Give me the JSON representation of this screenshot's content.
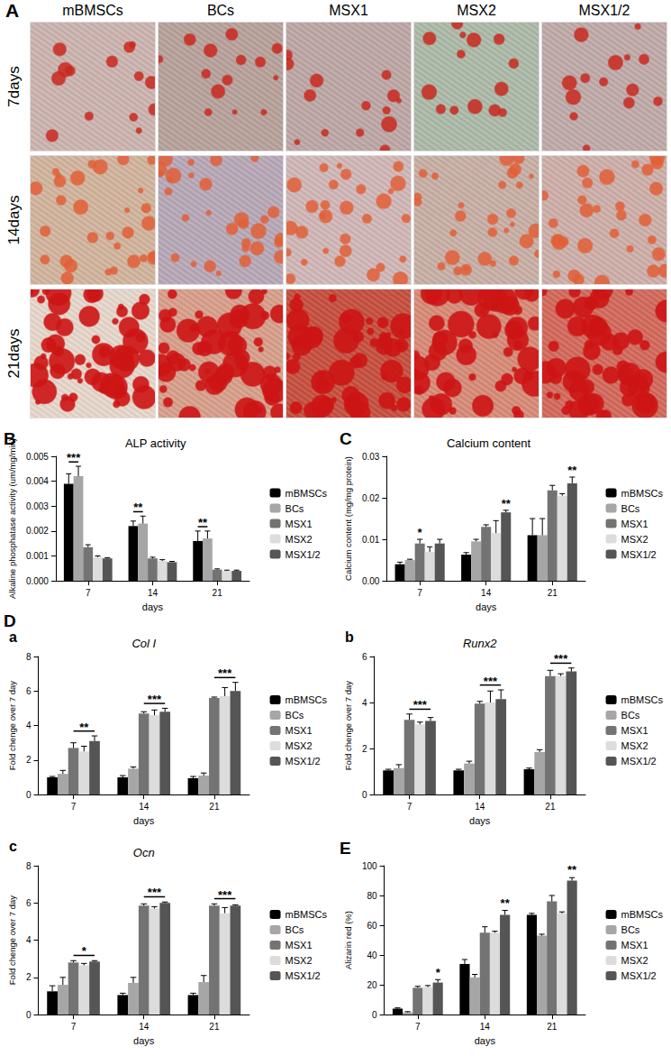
{
  "panel_A": {
    "label": "A",
    "columns": [
      "mBMSCs",
      "BCs",
      "MSX1",
      "MSX2",
      "MSX1/2"
    ],
    "rows": [
      "7days",
      "14days",
      "21days"
    ]
  },
  "chart_data": [
    {
      "type": "bar",
      "panel_label": "B",
      "title": "ALP activity",
      "x_label": "days",
      "y_label": "Alkaline phosphatase activity (um/mg/min)",
      "categories": [
        "7",
        "14",
        "21"
      ],
      "ylim": [
        0,
        0.005
      ],
      "yticks": [
        {
          "value": 0,
          "label": "0.000"
        },
        {
          "value": 0.001,
          "label": "0.001"
        },
        {
          "value": 0.002,
          "label": "0.002"
        },
        {
          "value": 0.003,
          "label": "0.003"
        },
        {
          "value": 0.004,
          "label": "0.004"
        },
        {
          "value": 0.005,
          "label": "0.005"
        }
      ],
      "grid": false,
      "legend": "right",
      "series": [
        {
          "name": "mBMSCs",
          "color": "#000000",
          "values": [
            0.0039,
            0.0022,
            0.0016
          ],
          "errors": [
            0.0004,
            0.0002,
            0.0004
          ]
        },
        {
          "name": "BCs",
          "color": "#a6a6a6",
          "values": [
            0.0042,
            0.0023,
            0.0017
          ],
          "errors": [
            0.0004,
            0.0003,
            0.0003
          ]
        },
        {
          "name": "MSX1",
          "color": "#737373",
          "values": [
            0.00135,
            0.0009,
            0.00045
          ],
          "errors": [
            0.0001,
            5e-05,
            3e-05
          ]
        },
        {
          "name": "MSX2",
          "color": "#dcdcdc",
          "values": [
            0.00095,
            0.0008,
            0.0004
          ],
          "errors": [
            5e-05,
            5e-05,
            3e-05
          ]
        },
        {
          "name": "MSX1/2",
          "color": "#555555",
          "values": [
            0.0009,
            0.00075,
            0.0004
          ],
          "errors": [
            3e-05,
            3e-05,
            3e-05
          ]
        }
      ],
      "annotations": [
        {
          "text": "***",
          "category": "7",
          "series": [
            "mBMSCs",
            "BCs"
          ]
        },
        {
          "text": "**",
          "category": "14",
          "series": [
            "mBMSCs",
            "BCs"
          ]
        },
        {
          "text": "**",
          "category": "21",
          "series": [
            "mBMSCs",
            "BCs"
          ]
        }
      ]
    },
    {
      "type": "bar",
      "panel_label": "C",
      "title": "Calcium content",
      "x_label": "days",
      "y_label": "Calcium content (mg/mg protein)",
      "categories": [
        "7",
        "14",
        "21"
      ],
      "ylim": [
        0,
        0.03
      ],
      "yticks": [
        {
          "value": 0,
          "label": "0.00"
        },
        {
          "value": 0.01,
          "label": "0.01"
        },
        {
          "value": 0.02,
          "label": "0.02"
        },
        {
          "value": 0.03,
          "label": "0.03"
        }
      ],
      "grid": false,
      "legend": "right",
      "series": [
        {
          "name": "mBMSCs",
          "color": "#000000",
          "values": [
            0.004,
            0.0063,
            0.011
          ],
          "errors": [
            0.0005,
            0.0005,
            0.004
          ]
        },
        {
          "name": "BCs",
          "color": "#a6a6a6",
          "values": [
            0.005,
            0.0095,
            0.011
          ],
          "errors": [
            0.0002,
            0.0005,
            0.004
          ]
        },
        {
          "name": "MSX1",
          "color": "#737373",
          "values": [
            0.009,
            0.013,
            0.0218
          ],
          "errors": [
            0.001,
            0.0005,
            0.0012
          ]
        },
        {
          "name": "MSX2",
          "color": "#dcdcdc",
          "values": [
            0.007,
            0.0115,
            0.0205
          ],
          "errors": [
            0.0012,
            0.003,
            0.0005
          ]
        },
        {
          "name": "MSX1/2",
          "color": "#555555",
          "values": [
            0.009,
            0.0165,
            0.0235
          ],
          "errors": [
            0.001,
            0.0005,
            0.0015
          ]
        }
      ],
      "annotations": [
        {
          "text": "*",
          "category": "7",
          "series": [
            "MSX1",
            "MSX1"
          ]
        },
        {
          "text": "**",
          "category": "14",
          "series": [
            "MSX1/2",
            "MSX1/2"
          ]
        },
        {
          "text": "**",
          "category": "21",
          "series": [
            "MSX1/2",
            "MSX1/2"
          ]
        }
      ]
    },
    {
      "type": "bar",
      "group_label": "D",
      "panel_label": "a",
      "title": "Col I",
      "x_label": "days",
      "y_label": "Fold chenge over 7 day",
      "categories": [
        "7",
        "14",
        "21"
      ],
      "ylim": [
        0,
        8
      ],
      "yticks": [
        0,
        2,
        4,
        6,
        8
      ],
      "grid": false,
      "legend": "right",
      "series": [
        {
          "name": "mBMSCs",
          "color": "#000000",
          "values": [
            1.0,
            1.0,
            0.95
          ],
          "errors": [
            0.05,
            0.1,
            0.1
          ]
        },
        {
          "name": "BCs",
          "color": "#a6a6a6",
          "values": [
            1.2,
            1.5,
            1.1
          ],
          "errors": [
            0.2,
            0.1,
            0.15
          ]
        },
        {
          "name": "MSX1",
          "color": "#737373",
          "values": [
            2.7,
            4.7,
            5.6
          ],
          "errors": [
            0.3,
            0.1,
            0.05
          ]
        },
        {
          "name": "MSX2",
          "color": "#dcdcdc",
          "values": [
            2.5,
            4.6,
            5.7
          ],
          "errors": [
            0.3,
            0.3,
            0.5
          ]
        },
        {
          "name": "MSX1/2",
          "color": "#555555",
          "values": [
            3.1,
            4.8,
            6.0
          ],
          "errors": [
            0.3,
            0.2,
            0.5
          ]
        }
      ],
      "annotations": [
        {
          "text": "**",
          "category": "7",
          "series": [
            "MSX1",
            "MSX1/2"
          ]
        },
        {
          "text": "***",
          "category": "14",
          "series": [
            "MSX1",
            "MSX1/2"
          ]
        },
        {
          "text": "***",
          "category": "21",
          "series": [
            "MSX1",
            "MSX1/2"
          ]
        }
      ]
    },
    {
      "type": "bar",
      "panel_label": "b",
      "title": "Runx2",
      "x_label": "days",
      "y_label": "Fold chenge over 7 day",
      "categories": [
        "7",
        "14",
        "21"
      ],
      "ylim": [
        0,
        6
      ],
      "yticks": [
        0,
        2,
        4,
        6
      ],
      "grid": false,
      "legend": "right",
      "series": [
        {
          "name": "mBMSCs",
          "color": "#000000",
          "values": [
            1.05,
            1.05,
            1.1
          ],
          "errors": [
            0.05,
            0.05,
            0.05
          ]
        },
        {
          "name": "BCs",
          "color": "#a6a6a6",
          "values": [
            1.15,
            1.35,
            1.85
          ],
          "errors": [
            0.15,
            0.1,
            0.1
          ]
        },
        {
          "name": "MSX1",
          "color": "#737373",
          "values": [
            3.25,
            3.95,
            5.15
          ],
          "errors": [
            0.25,
            0.1,
            0.25
          ]
        },
        {
          "name": "MSX2",
          "color": "#dcdcdc",
          "values": [
            3.05,
            4.0,
            5.15
          ],
          "errors": [
            0.1,
            0.5,
            0.1
          ]
        },
        {
          "name": "MSX1/2",
          "color": "#555555",
          "values": [
            3.2,
            4.15,
            5.35
          ],
          "errors": [
            0.15,
            0.4,
            0.15
          ]
        }
      ],
      "annotations": [
        {
          "text": "***",
          "category": "7",
          "series": [
            "MSX1",
            "MSX1/2"
          ]
        },
        {
          "text": "***",
          "category": "14",
          "series": [
            "MSX1",
            "MSX1/2"
          ]
        },
        {
          "text": "***",
          "category": "21",
          "series": [
            "MSX1",
            "MSX1/2"
          ]
        }
      ]
    },
    {
      "type": "bar",
      "panel_label": "c",
      "title": "Ocn",
      "x_label": "days",
      "y_label": "Fold chenge over 7 day",
      "categories": [
        "7",
        "14",
        "21"
      ],
      "ylim": [
        0,
        8
      ],
      "yticks": [
        0,
        2,
        4,
        6,
        8
      ],
      "grid": false,
      "legend": "right",
      "series": [
        {
          "name": "mBMSCs",
          "color": "#000000",
          "values": [
            1.25,
            1.05,
            1.05
          ],
          "errors": [
            0.3,
            0.1,
            0.1
          ]
        },
        {
          "name": "BCs",
          "color": "#a6a6a6",
          "values": [
            1.6,
            1.7,
            1.75
          ],
          "errors": [
            0.4,
            0.3,
            0.35
          ]
        },
        {
          "name": "MSX1",
          "color": "#737373",
          "values": [
            2.8,
            5.85,
            5.85
          ],
          "errors": [
            0.1,
            0.1,
            0.1
          ]
        },
        {
          "name": "MSX2",
          "color": "#dcdcdc",
          "values": [
            2.65,
            5.7,
            5.45
          ],
          "errors": [
            0.1,
            0.1,
            0.3
          ]
        },
        {
          "name": "MSX1/2",
          "color": "#555555",
          "values": [
            2.85,
            6.0,
            5.85
          ],
          "errors": [
            0.05,
            0.05,
            0.05
          ]
        }
      ],
      "annotations": [
        {
          "text": "*",
          "category": "7",
          "series": [
            "MSX1",
            "MSX1/2"
          ]
        },
        {
          "text": "***",
          "category": "14",
          "series": [
            "MSX1",
            "MSX1/2"
          ]
        },
        {
          "text": "***",
          "category": "21",
          "series": [
            "MSX1",
            "MSX1/2"
          ]
        }
      ]
    },
    {
      "type": "bar",
      "panel_label": "E",
      "title": "",
      "x_label": "days",
      "y_label": "Alizarin red (%)",
      "categories": [
        "7",
        "14",
        "21"
      ],
      "ylim": [
        0,
        100
      ],
      "yticks": [
        0,
        20,
        40,
        60,
        80,
        100
      ],
      "grid": false,
      "legend": "right",
      "series": [
        {
          "name": "mBMSCs",
          "color": "#000000",
          "values": [
            4,
            34,
            67
          ],
          "errors": [
            0.5,
            3,
            1
          ]
        },
        {
          "name": "BCs",
          "color": "#a6a6a6",
          "values": [
            1.5,
            25,
            53
          ],
          "errors": [
            0.5,
            2,
            1
          ]
        },
        {
          "name": "MSX1",
          "color": "#737373",
          "values": [
            18,
            55,
            76
          ],
          "errors": [
            1,
            4,
            4
          ]
        },
        {
          "name": "MSX2",
          "color": "#dcdcdc",
          "values": [
            18.5,
            55,
            68
          ],
          "errors": [
            1,
            1,
            1
          ]
        },
        {
          "name": "MSX1/2",
          "color": "#555555",
          "values": [
            21.5,
            67,
            90
          ],
          "errors": [
            2,
            3,
            2
          ]
        }
      ],
      "annotations": [
        {
          "text": "*",
          "category": "7",
          "series": [
            "MSX1/2",
            "MSX1/2"
          ]
        },
        {
          "text": "**",
          "category": "14",
          "series": [
            "MSX1/2",
            "MSX1/2"
          ]
        },
        {
          "text": "**",
          "category": "21",
          "series": [
            "MSX1/2",
            "MSX1/2"
          ]
        }
      ]
    }
  ]
}
